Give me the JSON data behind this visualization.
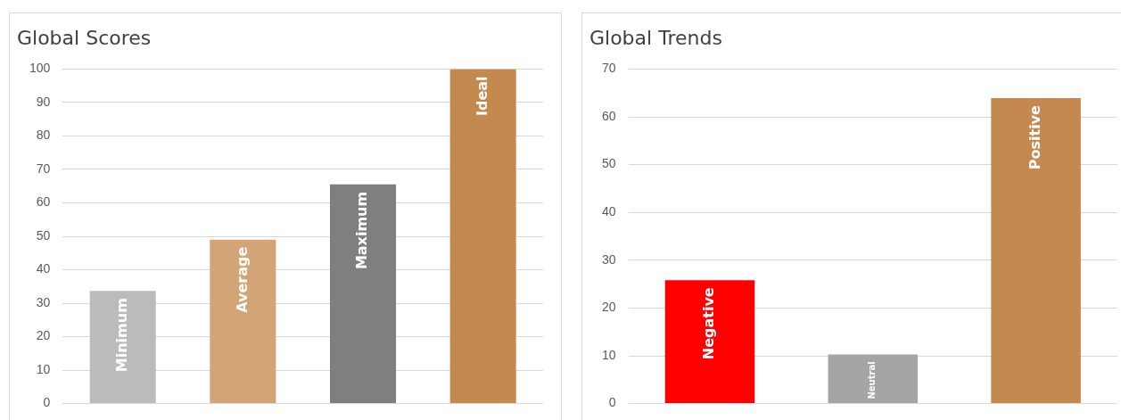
{
  "chart_data": [
    {
      "type": "bar",
      "title": "Global Scores",
      "categories": [
        "Minimum",
        "Average",
        "Maximum",
        "Ideal"
      ],
      "values": [
        33.7,
        49,
        65.5,
        100
      ],
      "colors": [
        "#bbbbbb",
        "#d3a576",
        "#7f7f7f",
        "#c4894f"
      ],
      "ylim": [
        0,
        100
      ],
      "yticks": [
        0,
        10,
        20,
        30,
        40,
        50,
        60,
        70,
        80,
        90,
        100
      ],
      "grid": "y",
      "legend": false,
      "tick_labels": "y"
    },
    {
      "type": "bar",
      "title": "Global Trends",
      "categories": [
        "Negative",
        "Neutral",
        "Positive"
      ],
      "values": [
        25.8,
        10.3,
        63.9
      ],
      "colors": [
        "#ff0000",
        "#a5a5a5",
        "#c4894f"
      ],
      "ylim": [
        0,
        70
      ],
      "yticks": [
        0,
        10,
        20,
        30,
        40,
        50,
        60,
        70
      ],
      "grid": "y",
      "legend": false,
      "tick_labels": "y"
    }
  ]
}
